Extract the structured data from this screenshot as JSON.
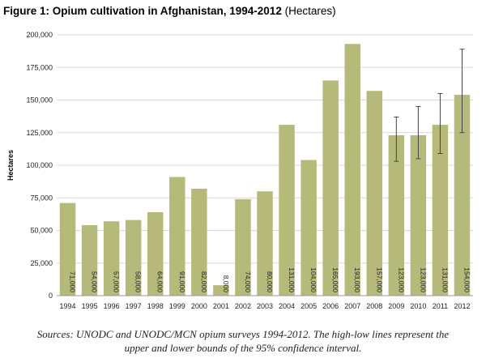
{
  "title": {
    "main": "Figure 1: Opium cultivation in Afghanistan, 1994-2012",
    "unit": "(Hectares)"
  },
  "source_lines": [
    "Sources: UNODC and UNODC/MCN opium surveys 1994-2012. The high-low lines represent the",
    "upper and lower bounds of the 95% confidence interval."
  ],
  "colors": {
    "bar": "#b5ba7a",
    "grid": "#d9d9d9",
    "errorbar": "#444444"
  },
  "chart_data": {
    "type": "bar",
    "ylabel": "Hectares",
    "ylim": [
      0,
      200000
    ],
    "yticks": [
      0,
      25000,
      50000,
      75000,
      100000,
      125000,
      150000,
      175000,
      200000
    ],
    "ytick_labels": [
      "0",
      "25,000",
      "50,000",
      "75,000",
      "100,000",
      "125,000",
      "150,000",
      "175,000",
      "200,000"
    ],
    "grid": true,
    "categories": [
      "1994",
      "1995",
      "1996",
      "1997",
      "1998",
      "1999",
      "2000",
      "2001",
      "2002",
      "2003",
      "2004",
      "2005",
      "2006",
      "2007",
      "2008",
      "2009",
      "2010",
      "2011",
      "2012"
    ],
    "values": [
      71000,
      54000,
      57000,
      58000,
      64000,
      91000,
      82000,
      8000,
      74000,
      80000,
      131000,
      104000,
      165000,
      193000,
      157000,
      123000,
      123000,
      131000,
      154000
    ],
    "value_labels": [
      "71,000",
      "54,000",
      "57,000",
      "58,000",
      "64,000",
      "91,000",
      "82,000",
      "8,000",
      "74,000",
      "80,000",
      "131,000",
      "104,000",
      "165,000",
      "193,000",
      "157,000",
      "123,000",
      "123,000",
      "131,000",
      "154,000"
    ],
    "error_bars": [
      {
        "category": "2009",
        "low": 103000,
        "high": 137000
      },
      {
        "category": "2010",
        "low": 105000,
        "high": 145000
      },
      {
        "category": "2011",
        "low": 109000,
        "high": 155000
      },
      {
        "category": "2012",
        "low": 125000,
        "high": 189000
      }
    ]
  }
}
